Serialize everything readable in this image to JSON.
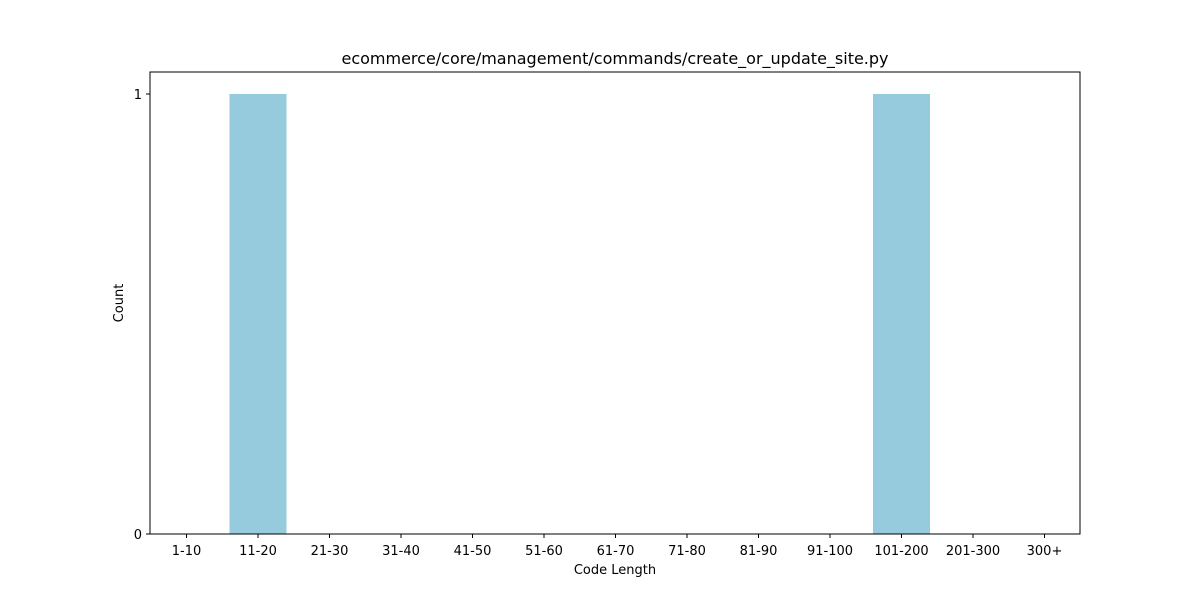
{
  "chart_data": {
    "type": "bar",
    "title": "ecommerce/core/management/commands/create_or_update_site.py",
    "xlabel": "Code Length",
    "ylabel": "Count",
    "categories": [
      "1-10",
      "11-20",
      "21-30",
      "31-40",
      "41-50",
      "51-60",
      "61-70",
      "71-80",
      "81-90",
      "91-100",
      "101-200",
      "201-300",
      "300+"
    ],
    "values": [
      0,
      1,
      0,
      0,
      0,
      0,
      0,
      0,
      0,
      0,
      1,
      0,
      0
    ],
    "yticks": [
      0,
      1
    ],
    "ylim": [
      0,
      1.05
    ],
    "grid": false,
    "bar_color": "#96cadd"
  }
}
